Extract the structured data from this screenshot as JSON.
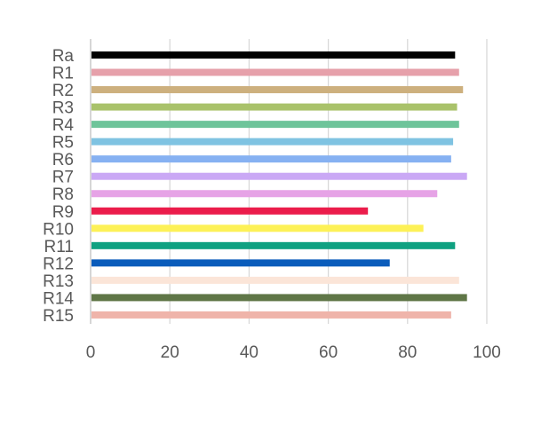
{
  "chart_data": {
    "type": "bar",
    "orientation": "horizontal",
    "title": "",
    "xlabel": "",
    "ylabel": "",
    "categories": [
      "Ra",
      "R1",
      "R2",
      "R3",
      "R4",
      "R5",
      "R6",
      "R7",
      "R8",
      "R9",
      "R10",
      "R11",
      "R12",
      "R13",
      "R14",
      "R15"
    ],
    "values": [
      92,
      93,
      94,
      92.5,
      93,
      91.5,
      91,
      95,
      87.5,
      70,
      84,
      92,
      75.5,
      93,
      95,
      91
    ],
    "colors": [
      "#000000",
      "#e6a0aa",
      "#cdb07e",
      "#a9c26a",
      "#6ec49a",
      "#7fc3e2",
      "#86b1f2",
      "#caa8f5",
      "#e6a3e6",
      "#eb1c4b",
      "#fdf157",
      "#0fa181",
      "#0a5cbb",
      "#fbe5d8",
      "#5f7647",
      "#efb4aa"
    ],
    "xlim": [
      0,
      100
    ],
    "xticks": [
      0,
      20,
      40,
      60,
      80,
      100
    ],
    "xtick_labels": [
      "0",
      "20",
      "40",
      "60",
      "80",
      "100"
    ],
    "grid": "vertical",
    "legend": "none"
  }
}
